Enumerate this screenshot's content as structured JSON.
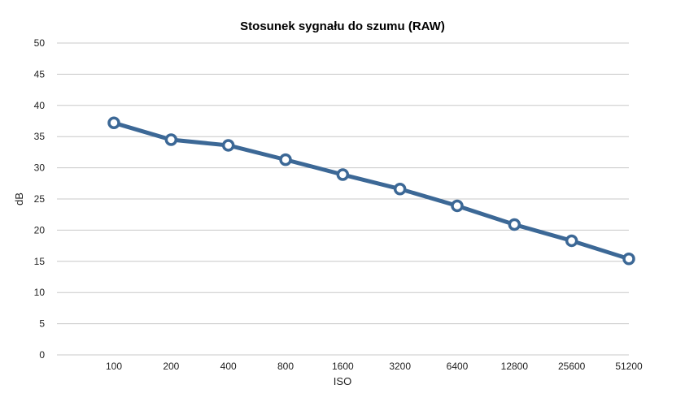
{
  "chart_data": {
    "type": "line",
    "title": "Stosunek sygnału do szumu (RAW)",
    "xlabel": "ISO",
    "ylabel": "dB",
    "categories": [
      "100",
      "200",
      "400",
      "800",
      "1600",
      "3200",
      "6400",
      "12800",
      "25600",
      "51200"
    ],
    "series": [
      {
        "values": [
          37.2,
          34.5,
          33.6,
          31.3,
          28.9,
          26.6,
          23.9,
          20.9,
          18.3,
          15.4
        ]
      }
    ],
    "ylim": [
      0,
      50
    ],
    "yticks": [
      "0",
      "5",
      "10",
      "15",
      "20",
      "25",
      "30",
      "35",
      "40",
      "45",
      "50"
    ],
    "grid": true,
    "legend": "none",
    "colors": {
      "line": "#3c6896",
      "marker_fill": "#ffffff",
      "grid": "#c8c8c8"
    }
  }
}
